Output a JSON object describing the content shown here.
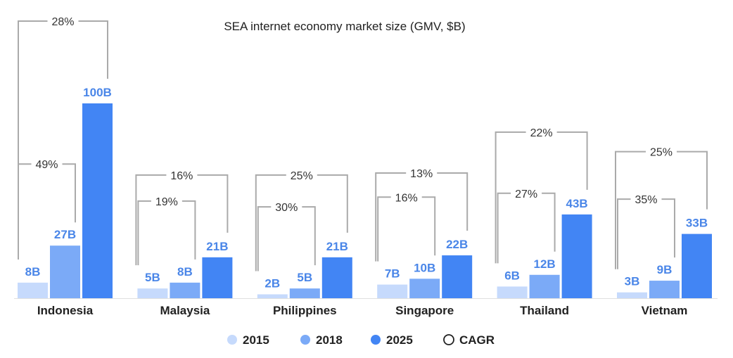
{
  "chart_data": {
    "type": "bar",
    "title": "SEA internet economy market size (GMV, $B)",
    "categories": [
      "Indonesia",
      "Malaysia",
      "Philippines",
      "Singapore",
      "Thailand",
      "Vietnam"
    ],
    "series": [
      {
        "name": "2015",
        "color": "#c6dafc",
        "values": [
          8,
          5,
          2,
          7,
          6,
          3
        ],
        "labels": [
          "8B",
          "5B",
          "2B",
          "7B",
          "6B",
          "3B"
        ]
      },
      {
        "name": "2018",
        "color": "#7baaf7",
        "values": [
          27,
          8,
          5,
          10,
          12,
          9
        ],
        "labels": [
          "27B",
          "8B",
          "5B",
          "10B",
          "12B",
          "9B"
        ]
      },
      {
        "name": "2025",
        "color": "#4285f4",
        "values": [
          100,
          21,
          21,
          22,
          43,
          33
        ],
        "labels": [
          "100B",
          "21B",
          "21B",
          "22B",
          "43B",
          "33B"
        ]
      }
    ],
    "cagr_2015_2018": [
      "49%",
      "19%",
      "30%",
      "16%",
      "27%",
      "35%"
    ],
    "cagr_2015_2025": [
      "28%",
      "16%",
      "25%",
      "13%",
      "22%",
      "25%"
    ],
    "ylim": [
      0,
      100
    ],
    "value_label_color": "#4a86e8",
    "legend": [
      {
        "label": "2015",
        "color": "#c6dafc",
        "marker": "filled"
      },
      {
        "label": "2018",
        "color": "#7baaf7",
        "marker": "filled"
      },
      {
        "label": "2025",
        "color": "#4285f4",
        "marker": "filled"
      },
      {
        "label": "CAGR",
        "color": "#212121",
        "marker": "outline"
      }
    ],
    "legend_position": "bottom-center"
  }
}
